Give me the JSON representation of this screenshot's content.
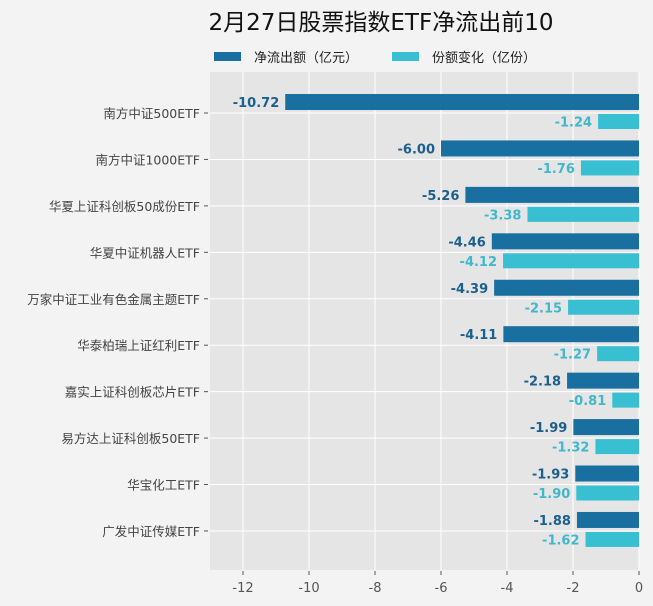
{
  "chart_data": {
    "type": "bar",
    "orientation": "horizontal",
    "title": "2月27日股票指数ETF净流出前10",
    "categories": [
      "南方中证500ETF",
      "南方中证1000ETF",
      "华夏上证科创板50成份ETF",
      "华夏中证机器人ETF",
      "万家中证工业有色金属主题ETF",
      "华泰柏瑞上证红利ETF",
      "嘉实上证科创板芯片ETF",
      "易方达上证科创板50ETF",
      "华宝化工ETF",
      "广发中证传媒ETF"
    ],
    "series": [
      {
        "name": "净流出额（亿元）",
        "color": "#186fa0",
        "values": [
          -10.72,
          -6.0,
          -5.26,
          -4.46,
          -4.39,
          -4.11,
          -2.18,
          -1.99,
          -1.93,
          -1.88
        ],
        "labels": [
          "-10.72",
          "-6.00",
          "-5.26",
          "-4.46",
          "-4.39",
          "-4.11",
          "-2.18",
          "-1.99",
          "-1.93",
          "-1.88"
        ]
      },
      {
        "name": "份额变化（亿份）",
        "color": "#38c0d2",
        "values": [
          -1.24,
          -1.76,
          -3.38,
          -4.12,
          -2.15,
          -1.27,
          -0.81,
          -1.32,
          -1.9,
          -1.62
        ],
        "labels": [
          "-1.24",
          "-1.76",
          "-3.38",
          "-4.12",
          "-2.15",
          "-1.27",
          "-0.81",
          "-1.32",
          "-1.90",
          "-1.62"
        ]
      }
    ],
    "xlim": [
      -13,
      0
    ],
    "xticks": [
      -12,
      -10,
      -8,
      -6,
      -4,
      -2,
      0
    ],
    "xtick_labels": [
      "-12",
      "-10",
      "-8",
      "-6",
      "-4",
      "-2",
      "0"
    ],
    "grid": true,
    "legend_position": "top",
    "xlabel": "",
    "ylabel": ""
  }
}
